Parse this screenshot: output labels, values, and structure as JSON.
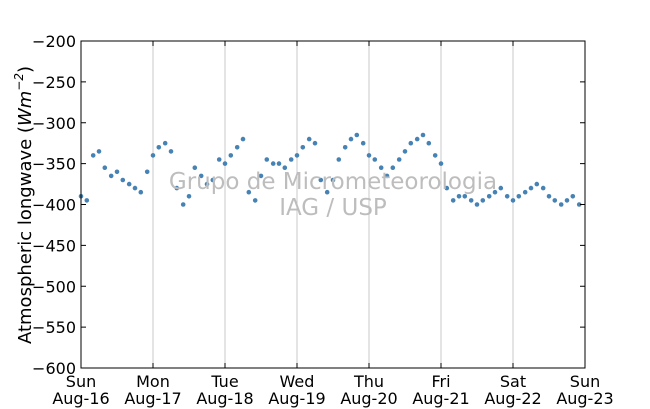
{
  "chart_data": {
    "type": "scatter",
    "title": "",
    "ylabel": "Atmospheric longwave (Wm⁻²)",
    "ylabel_text": "Atmospheric longwave (",
    "ylabel_math_base": "Wm",
    "ylabel_math_sup": "−2",
    "ylabel_close": ")",
    "xlabel": "",
    "ylim": [
      -600,
      -200
    ],
    "xlim": [
      0,
      7
    ],
    "yticks": [
      -200,
      -250,
      -300,
      -350,
      -400,
      -450,
      -500,
      -550,
      -600
    ],
    "ytick_labels": [
      "−200",
      "−250",
      "−300",
      "−350",
      "−400",
      "−450",
      "−500",
      "−550",
      "−600"
    ],
    "xticks": [
      {
        "day": "Sun",
        "date": "Aug-16"
      },
      {
        "day": "Mon",
        "date": "Aug-17"
      },
      {
        "day": "Tue",
        "date": "Aug-18"
      },
      {
        "day": "Wed",
        "date": "Aug-19"
      },
      {
        "day": "Thu",
        "date": "Aug-20"
      },
      {
        "day": "Fri",
        "date": "Aug-21"
      },
      {
        "day": "Sat",
        "date": "Aug-22"
      },
      {
        "day": "Sun",
        "date": "Aug-23"
      }
    ],
    "grid": "vertical lines at day ticks",
    "marker_color": "#4682b4",
    "series": [
      {
        "x_units": "days since Sun Aug-16 00:00",
        "points": [
          [
            0.0,
            -390
          ],
          [
            0.08,
            -395
          ],
          [
            0.17,
            -340
          ],
          [
            0.25,
            -335
          ],
          [
            0.33,
            -355
          ],
          [
            0.42,
            -365
          ],
          [
            0.5,
            -360
          ],
          [
            0.58,
            -370
          ],
          [
            0.67,
            -375
          ],
          [
            0.75,
            -380
          ],
          [
            0.83,
            -385
          ],
          [
            0.92,
            -360
          ],
          [
            1.0,
            -340
          ],
          [
            1.08,
            -330
          ],
          [
            1.17,
            -325
          ],
          [
            1.25,
            -335
          ],
          [
            1.33,
            -380
          ],
          [
            1.42,
            -400
          ],
          [
            1.5,
            -390
          ],
          [
            1.58,
            -355
          ],
          [
            1.67,
            -365
          ],
          [
            1.75,
            -375
          ],
          [
            1.83,
            -370
          ],
          [
            1.92,
            -345
          ],
          [
            2.0,
            -350
          ],
          [
            2.08,
            -340
          ],
          [
            2.17,
            -330
          ],
          [
            2.25,
            -320
          ],
          [
            2.33,
            -385
          ],
          [
            2.42,
            -395
          ],
          [
            2.5,
            -365
          ],
          [
            2.58,
            -345
          ],
          [
            2.67,
            -350
          ],
          [
            2.75,
            -350
          ],
          [
            2.83,
            -355
          ],
          [
            2.92,
            -345
          ],
          [
            3.0,
            -340
          ],
          [
            3.08,
            -330
          ],
          [
            3.17,
            -320
          ],
          [
            3.25,
            -325
          ],
          [
            3.33,
            -370
          ],
          [
            3.42,
            -385
          ],
          [
            3.5,
            -370
          ],
          [
            3.58,
            -345
          ],
          [
            3.67,
            -330
          ],
          [
            3.75,
            -320
          ],
          [
            3.83,
            -315
          ],
          [
            3.92,
            -325
          ],
          [
            4.0,
            -340
          ],
          [
            4.08,
            -345
          ],
          [
            4.17,
            -355
          ],
          [
            4.25,
            -365
          ],
          [
            4.33,
            -355
          ],
          [
            4.42,
            -345
          ],
          [
            4.5,
            -335
          ],
          [
            4.58,
            -325
          ],
          [
            4.67,
            -320
          ],
          [
            4.75,
            -315
          ],
          [
            4.83,
            -325
          ],
          [
            4.92,
            -340
          ],
          [
            5.0,
            -350
          ],
          [
            5.08,
            -380
          ],
          [
            5.17,
            -395
          ],
          [
            5.25,
            -390
          ],
          [
            5.33,
            -390
          ],
          [
            5.42,
            -395
          ],
          [
            5.5,
            -400
          ],
          [
            5.58,
            -395
          ],
          [
            5.67,
            -390
          ],
          [
            5.75,
            -385
          ],
          [
            5.83,
            -380
          ],
          [
            5.92,
            -390
          ],
          [
            6.0,
            -395
          ],
          [
            6.08,
            -390
          ],
          [
            6.17,
            -385
          ],
          [
            6.25,
            -380
          ],
          [
            6.33,
            -375
          ],
          [
            6.42,
            -380
          ],
          [
            6.5,
            -390
          ],
          [
            6.58,
            -395
          ],
          [
            6.67,
            -400
          ],
          [
            6.75,
            -395
          ],
          [
            6.83,
            -390
          ],
          [
            6.92,
            -400
          ]
        ]
      }
    ]
  },
  "watermark": {
    "line1": "Grupo de Micrometeorologia",
    "line2": "IAG / USP"
  }
}
